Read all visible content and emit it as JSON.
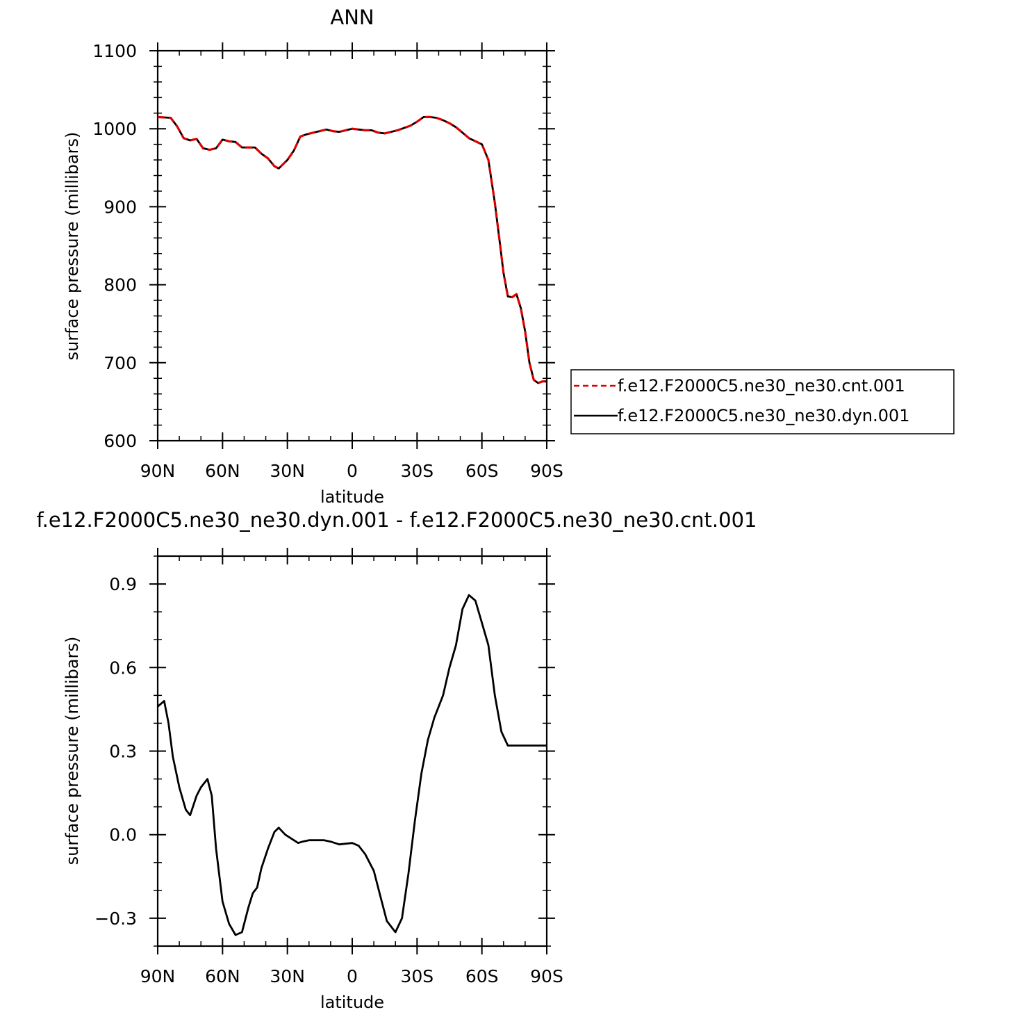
{
  "colors": {
    "cnt": "#e00000",
    "dyn": "#000000"
  },
  "chart_data": [
    {
      "type": "line",
      "title": "ANN",
      "xlabel": "latitude",
      "ylabel": "surface pressure (millibars)",
      "xlim": [
        90,
        -90
      ],
      "ylim": [
        600,
        1100
      ],
      "xticks": [
        90,
        60,
        30,
        0,
        -30,
        -60,
        -90
      ],
      "xtick_labels": [
        "90N",
        "60N",
        "30N",
        "0",
        "30S",
        "60S",
        "90S"
      ],
      "yticks": [
        600,
        700,
        800,
        900,
        1000,
        1100
      ],
      "ytick_labels": [
        "600",
        "700",
        "800",
        "900",
        "1000",
        "1100"
      ],
      "grid": false,
      "legend_position": "right",
      "series": [
        {
          "name": "f.e12.F2000C5.ne30_ne30.cnt.001",
          "style": "dashed",
          "color": "#e00000",
          "x": [
            90,
            84,
            81,
            78,
            75,
            72,
            69,
            66,
            63,
            60,
            57,
            54,
            51,
            48,
            45,
            42,
            39,
            36,
            34,
            30,
            27,
            24,
            21,
            18,
            15,
            12,
            9,
            6,
            3,
            0,
            -3,
            -6,
            -9,
            -12,
            -15,
            -18,
            -21,
            -24,
            -27,
            -30,
            -33,
            -36,
            -39,
            -42,
            -45,
            -48,
            -51,
            -54,
            -57,
            -60,
            -63,
            -66,
            -68,
            -70,
            -72,
            -74,
            -76,
            -78,
            -80,
            -82,
            -84,
            -86,
            -88,
            -90
          ],
          "y": [
            1015,
            1014,
            1003,
            988,
            985,
            987,
            975,
            973,
            975,
            986,
            984,
            983,
            976,
            976,
            976,
            968,
            962,
            952,
            949,
            960,
            972,
            990,
            993,
            995,
            997,
            999,
            997,
            996,
            998,
            1000,
            999,
            998,
            998,
            995,
            994,
            996,
            998,
            1001,
            1004,
            1009,
            1015,
            1015,
            1014,
            1011,
            1007,
            1002,
            995,
            988,
            984,
            980,
            960,
            905,
            860,
            815,
            785,
            784,
            788,
            770,
            740,
            700,
            678,
            674,
            676,
            676
          ]
        },
        {
          "name": "f.e12.F2000C5.ne30_ne30.dyn.001",
          "style": "solid",
          "color": "#000000",
          "x": [
            90,
            84,
            81,
            78,
            75,
            72,
            69,
            66,
            63,
            60,
            57,
            54,
            51,
            48,
            45,
            42,
            39,
            36,
            34,
            30,
            27,
            24,
            21,
            18,
            15,
            12,
            9,
            6,
            3,
            0,
            -3,
            -6,
            -9,
            -12,
            -15,
            -18,
            -21,
            -24,
            -27,
            -30,
            -33,
            -36,
            -39,
            -42,
            -45,
            -48,
            -51,
            -54,
            -57,
            -60,
            -63,
            -66,
            -68,
            -70,
            -72,
            -74,
            -76,
            -78,
            -80,
            -82,
            -84,
            -86,
            -88,
            -90
          ],
          "y": [
            1015,
            1014,
            1003,
            988,
            985,
            987,
            975,
            973,
            975,
            986,
            984,
            983,
            976,
            976,
            976,
            968,
            962,
            952,
            949,
            960,
            972,
            990,
            993,
            995,
            997,
            999,
            997,
            996,
            998,
            1000,
            999,
            998,
            998,
            995,
            994,
            996,
            998,
            1001,
            1004,
            1009,
            1015,
            1015,
            1014,
            1011,
            1007,
            1002,
            995,
            988,
            984,
            980,
            960,
            905,
            860,
            815,
            785,
            784,
            788,
            770,
            740,
            700,
            678,
            674,
            676,
            676
          ]
        }
      ]
    },
    {
      "type": "line",
      "title": "f.e12.F2000C5.ne30_ne30.dyn.001 - f.e12.F2000C5.ne30_ne30.cnt.001",
      "xlabel": "latitude",
      "ylabel": "surface pressure (millibars)",
      "xlim": [
        90,
        -90
      ],
      "ylim": [
        -0.4,
        1.0
      ],
      "xticks": [
        90,
        60,
        30,
        0,
        -30,
        -60,
        -90
      ],
      "xtick_labels": [
        "90N",
        "60N",
        "30N",
        "0",
        "30S",
        "60S",
        "90S"
      ],
      "yticks": [
        -0.3,
        0.0,
        0.3,
        0.6,
        0.9
      ],
      "ytick_labels": [
        "−0.3",
        "0.0",
        "0.3",
        "0.6",
        "0.9"
      ],
      "grid": false,
      "series": [
        {
          "style": "solid",
          "color": "#000000",
          "x": [
            90,
            87,
            85,
            83,
            80,
            77,
            75,
            72,
            70,
            67,
            65,
            63,
            60,
            57,
            54,
            51,
            48,
            46,
            44,
            42,
            39,
            36,
            34,
            31,
            29,
            27,
            25,
            23,
            20,
            16,
            13,
            10,
            6,
            0,
            -3,
            -6,
            -10,
            -13,
            -16,
            -20,
            -23,
            -26,
            -29,
            -32,
            -35,
            -38,
            -42,
            -45,
            -48,
            -51,
            -54,
            -57,
            -60,
            -63,
            -66,
            -69,
            -72,
            -75,
            -78,
            -80,
            -83,
            -86,
            -88,
            -90
          ],
          "y": [
            0.46,
            0.48,
            0.4,
            0.28,
            0.17,
            0.09,
            0.07,
            0.14,
            0.17,
            0.2,
            0.14,
            -0.05,
            -0.24,
            -0.32,
            -0.36,
            -0.35,
            -0.26,
            -0.21,
            -0.19,
            -0.12,
            -0.05,
            0.01,
            0.025,
            0.0,
            -0.01,
            -0.02,
            -0.03,
            -0.025,
            -0.02,
            -0.02,
            -0.02,
            -0.025,
            -0.035,
            -0.03,
            -0.04,
            -0.07,
            -0.13,
            -0.22,
            -0.31,
            -0.35,
            -0.3,
            -0.14,
            0.05,
            0.22,
            0.34,
            0.42,
            0.5,
            0.6,
            0.68,
            0.81,
            0.86,
            0.84,
            0.76,
            0.68,
            0.5,
            0.37,
            0.32,
            0.32,
            0.32,
            0.32,
            0.32,
            0.32,
            0.32,
            0.32
          ]
        }
      ]
    }
  ]
}
